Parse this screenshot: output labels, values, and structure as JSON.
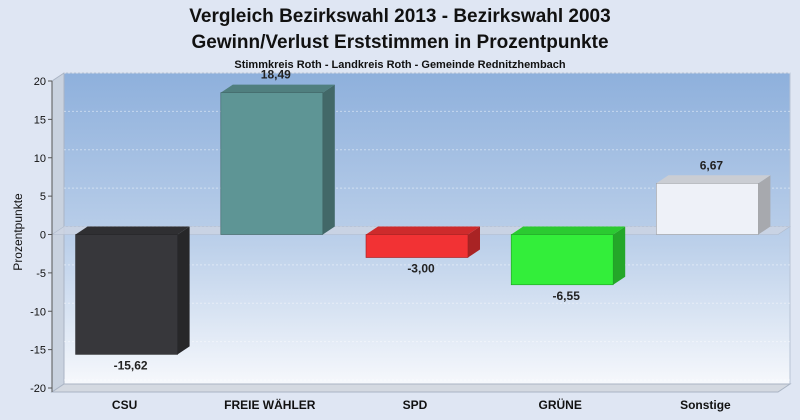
{
  "chart_data": {
    "type": "bar",
    "title_lines": [
      "Vergleich Bezirkswahl 2013 - Bezirkswahl 2003",
      "Gewinn/Verlust Erststimmen in Prozentpunkte"
    ],
    "subtitle": "Stimmkreis Roth - Landkreis Roth - Gemeinde Rednitzhembach",
    "ylabel": "Prozentpunkte",
    "xlabel": "",
    "ylim": [
      -20,
      20
    ],
    "yticks": [
      20,
      15,
      10,
      5,
      0,
      -5,
      -10,
      -15,
      -20
    ],
    "categories": [
      "CSU",
      "FREIE WÄHLER",
      "SPD",
      "GRÜNE",
      "Sonstige"
    ],
    "values": [
      -15.62,
      18.49,
      -3.0,
      -6.55,
      6.67
    ],
    "value_labels": [
      "-15,62",
      "18,49",
      "-3,00",
      "-6,55",
      "6,67"
    ],
    "colors": [
      "#37373b",
      "#5e9595",
      "#f23234",
      "#33ee3a",
      "#eef1f8"
    ],
    "grid": true,
    "legend": "none"
  }
}
